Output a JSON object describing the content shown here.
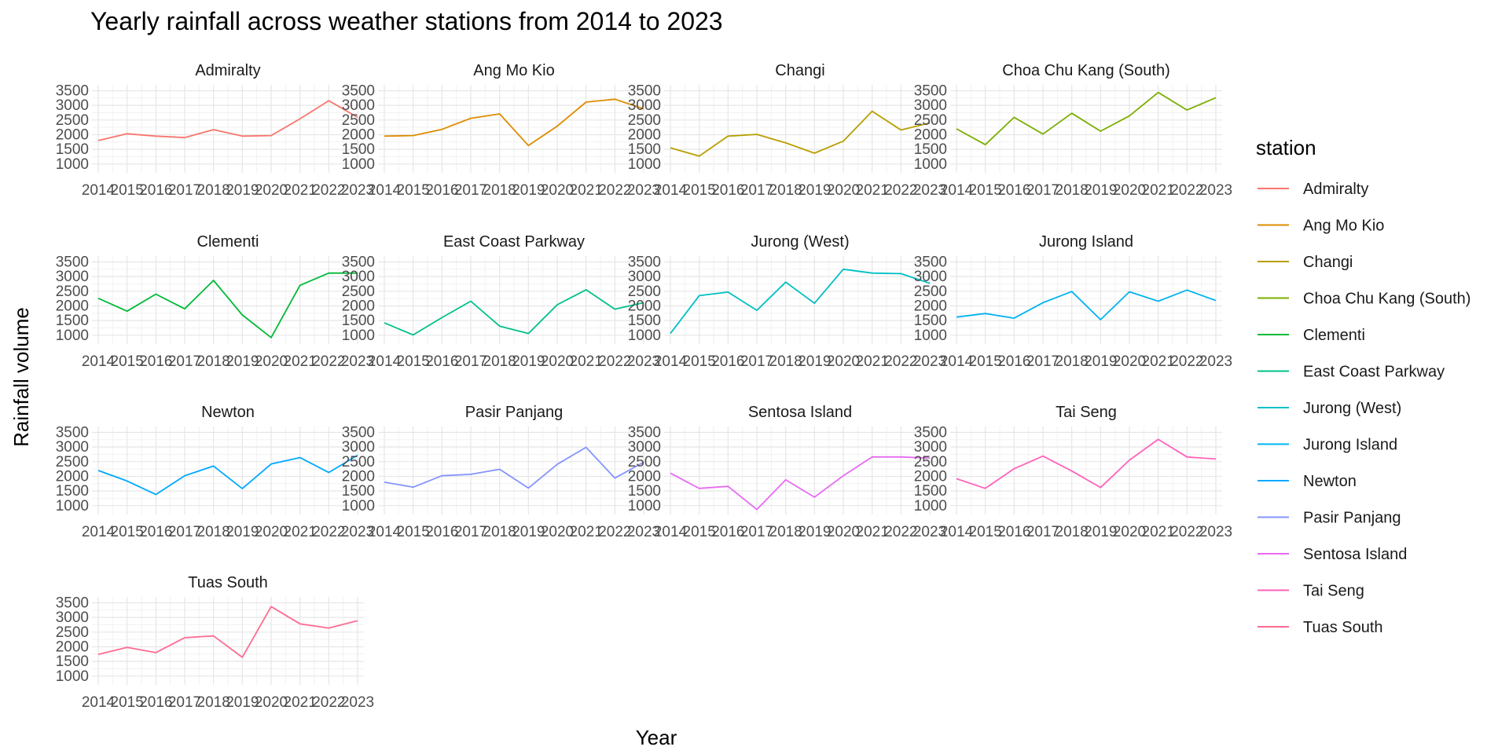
{
  "chart_data": {
    "type": "line",
    "title": "Yearly rainfall across weather stations from 2014 to 2023",
    "xlabel": "Year",
    "ylabel": "Rainfall volume",
    "x": [
      "2014",
      "2015",
      "2016",
      "2017",
      "2018",
      "2019",
      "2020",
      "2021",
      "2022",
      "2023"
    ],
    "y_ticks": [
      1000,
      1500,
      2000,
      2500,
      3000,
      3500
    ],
    "ylim": [
      700,
      3700
    ],
    "grid": true,
    "legend": {
      "title": "station",
      "position": "right"
    },
    "series": [
      {
        "name": "Admiralty",
        "color": "#F8766D",
        "values": [
          1800,
          2030,
          1950,
          1900,
          2170,
          1950,
          1970,
          2540,
          3160,
          2590
        ]
      },
      {
        "name": "Ang Mo Kio",
        "color": "#DE8C00",
        "values": [
          1950,
          1970,
          2180,
          2560,
          2710,
          1630,
          2290,
          3110,
          3210,
          2880
        ]
      },
      {
        "name": "Changi",
        "color": "#B79F00",
        "values": [
          1550,
          1270,
          1950,
          2010,
          1720,
          1370,
          1780,
          2800,
          2160,
          2400
        ]
      },
      {
        "name": "Choa Chu Kang (South)",
        "color": "#7CAE00",
        "values": [
          2200,
          1660,
          2590,
          2020,
          2730,
          2120,
          2640,
          3440,
          2840,
          3260
        ]
      },
      {
        "name": "Clementi",
        "color": "#00BA38",
        "values": [
          2260,
          1820,
          2400,
          1900,
          2870,
          1690,
          920,
          2700,
          3120,
          3120
        ]
      },
      {
        "name": "East Coast Parkway",
        "color": "#00C08B",
        "values": [
          1420,
          1010,
          1600,
          2160,
          1310,
          1060,
          2040,
          2550,
          1890,
          2110
        ]
      },
      {
        "name": "Jurong (West)",
        "color": "#00BFC4",
        "values": [
          1060,
          2350,
          2470,
          1850,
          2810,
          2090,
          3250,
          3120,
          3100,
          2770
        ]
      },
      {
        "name": "Jurong Island",
        "color": "#00B4F0",
        "values": [
          1620,
          1740,
          1580,
          2110,
          2490,
          1530,
          2480,
          2160,
          2540,
          2180
        ]
      },
      {
        "name": "Newton",
        "color": "#00A9FF",
        "values": [
          2200,
          1840,
          1380,
          2020,
          2350,
          1580,
          2420,
          2640,
          2130,
          2720
        ]
      },
      {
        "name": "Pasir Panjang",
        "color": "#8494FF",
        "values": [
          1800,
          1630,
          2020,
          2070,
          2240,
          1600,
          2410,
          2990,
          1940,
          2480
        ]
      },
      {
        "name": "Sentosa Island",
        "color": "#E76BF3",
        "values": [
          2110,
          1590,
          1660,
          870,
          1880,
          1290,
          2020,
          2660,
          2660,
          2620
        ]
      },
      {
        "name": "Tai Seng",
        "color": "#FF62BC",
        "values": [
          1920,
          1590,
          2260,
          2690,
          2180,
          1620,
          2550,
          3260,
          2660,
          2590
        ]
      },
      {
        "name": "Tuas South",
        "color": "#FF6C91",
        "values": [
          1740,
          1980,
          1800,
          2310,
          2370,
          1640,
          3370,
          2780,
          2640,
          2890
        ]
      }
    ]
  }
}
